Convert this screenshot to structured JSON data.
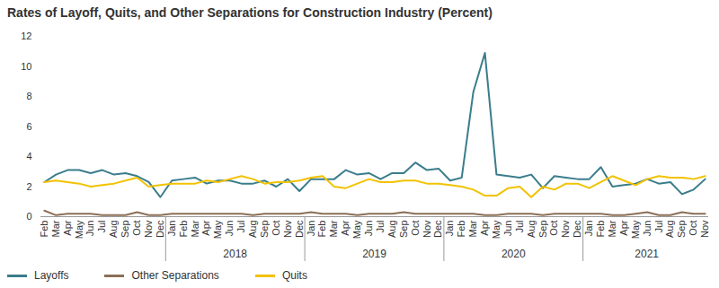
{
  "chart_data": {
    "type": "line",
    "title": "Rates of Layoff, Quits, and Other Separations for Construction Industry (Percent)",
    "categories": [
      "Feb",
      "Mar",
      "Apr",
      "May",
      "Jun",
      "Jul",
      "Aug",
      "Sep",
      "Oct",
      "Nov",
      "Dec",
      "Jan",
      "Feb",
      "Mar",
      "Apr",
      "May",
      "Jun",
      "Jul",
      "Aug",
      "Sep",
      "Oct",
      "Nov",
      "Dec",
      "Jan",
      "Feb",
      "Mar",
      "Apr",
      "May",
      "Jun",
      "Jul",
      "Aug",
      "Sep",
      "Oct",
      "Nov",
      "Dec",
      "Jan",
      "Feb",
      "Mar",
      "Apr",
      "May",
      "Jun",
      "Jul",
      "Aug",
      "Sep",
      "Oct",
      "Nov",
      "Dec",
      "Jan",
      "Feb",
      "Mar",
      "Apr",
      "May",
      "Jun",
      "Jul",
      "Aug",
      "Sep",
      "Oct",
      "Nov"
    ],
    "x_groups": [
      null,
      null,
      null,
      null,
      null,
      null,
      null,
      null,
      null,
      null,
      null,
      "2018",
      "2018",
      "2018",
      "2018",
      "2018",
      "2018",
      "2018",
      "2018",
      "2018",
      "2018",
      "2018",
      "2018",
      "2019",
      "2019",
      "2019",
      "2019",
      "2019",
      "2019",
      "2019",
      "2019",
      "2019",
      "2019",
      "2019",
      "2019",
      "2020",
      "2020",
      "2020",
      "2020",
      "2020",
      "2020",
      "2020",
      "2020",
      "2020",
      "2020",
      "2020",
      "2020",
      "2021",
      "2021",
      "2021",
      "2021",
      "2021",
      "2021",
      "2021",
      "2021",
      "2021",
      "2021",
      "2021"
    ],
    "series": [
      {
        "name": "Layoffs",
        "color": "#3a7d8c",
        "values": [
          2.3,
          2.8,
          3.1,
          3.1,
          2.9,
          3.1,
          2.8,
          2.9,
          2.7,
          2.3,
          1.3,
          2.4,
          2.5,
          2.6,
          2.2,
          2.4,
          2.4,
          2.2,
          2.2,
          2.4,
          2.0,
          2.5,
          1.7,
          2.5,
          2.5,
          2.5,
          3.1,
          2.8,
          2.9,
          2.5,
          2.9,
          2.9,
          3.6,
          3.1,
          3.2,
          2.4,
          2.6,
          8.3,
          10.9,
          2.8,
          2.7,
          2.6,
          2.8,
          1.9,
          2.7,
          2.6,
          2.5,
          2.5,
          3.3,
          2.0,
          2.1,
          2.2,
          2.5,
          2.2,
          2.3,
          1.5,
          1.8,
          2.5
        ]
      },
      {
        "name": "Other Separations",
        "color": "#8b6f56",
        "values": [
          0.4,
          0.1,
          0.2,
          0.2,
          0.2,
          0.1,
          0.1,
          0.1,
          0.3,
          0.1,
          0.1,
          0.2,
          0.2,
          0.2,
          0.2,
          0.2,
          0.2,
          0.2,
          0.1,
          0.2,
          0.2,
          0.2,
          0.2,
          0.3,
          0.2,
          0.2,
          0.2,
          0.1,
          0.2,
          0.2,
          0.2,
          0.3,
          0.2,
          0.2,
          0.2,
          0.2,
          0.2,
          0.2,
          0.1,
          0.1,
          0.2,
          0.2,
          0.2,
          0.1,
          0.2,
          0.2,
          0.2,
          0.2,
          0.2,
          0.1,
          0.1,
          0.2,
          0.3,
          0.1,
          0.1,
          0.3,
          0.2,
          0.2
        ]
      },
      {
        "name": "Quits",
        "color": "#f2c200",
        "values": [
          2.3,
          2.4,
          2.3,
          2.2,
          2.0,
          2.1,
          2.2,
          2.4,
          2.6,
          2.0,
          2.1,
          2.2,
          2.2,
          2.2,
          2.4,
          2.3,
          2.5,
          2.7,
          2.5,
          2.2,
          2.3,
          2.3,
          2.4,
          2.6,
          2.7,
          2.0,
          1.9,
          2.2,
          2.5,
          2.3,
          2.3,
          2.4,
          2.4,
          2.2,
          2.2,
          2.1,
          2.0,
          1.8,
          1.4,
          1.4,
          1.9,
          2.0,
          1.3,
          2.0,
          1.8,
          2.2,
          2.2,
          1.9,
          2.3,
          2.7,
          2.4,
          2.1,
          2.5,
          2.7,
          2.6,
          2.6,
          2.5,
          2.7
        ]
      }
    ],
    "ylim": [
      0,
      12
    ],
    "yticks": [
      0,
      2,
      4,
      6,
      8,
      10,
      12
    ],
    "grid": false,
    "legend": "bottom"
  }
}
